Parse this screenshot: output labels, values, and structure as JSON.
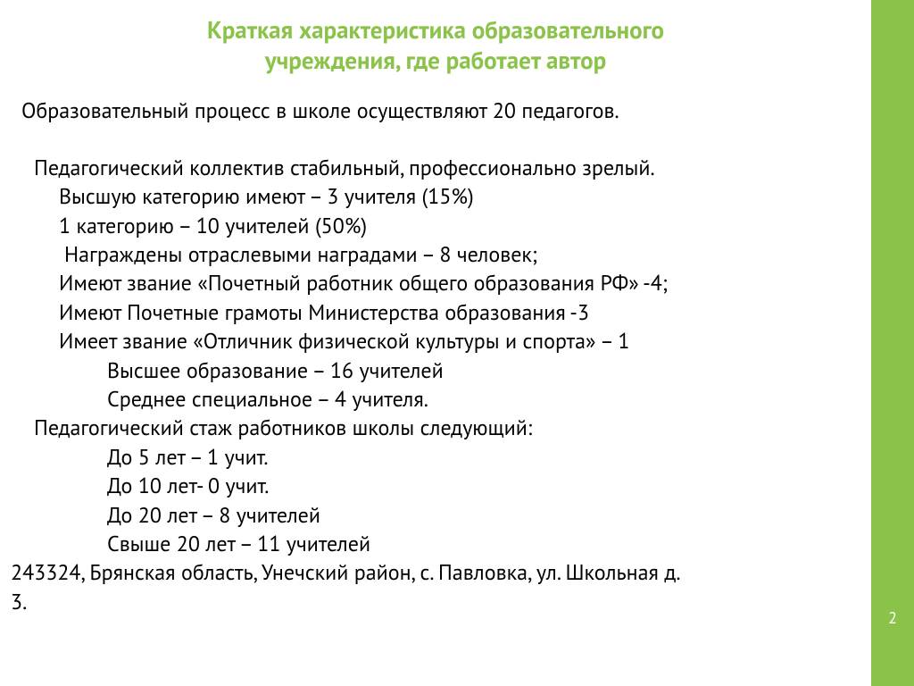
{
  "colors": {
    "accent": "#8bc34a",
    "title": "#8bc34a",
    "text": "#000000",
    "page_number": "#ffffff",
    "background": "#ffffff"
  },
  "page_number": "2",
  "title_line1": "Краткая характеристика образовательного",
  "title_line2": "учреждения, где работает автор",
  "lines": {
    "intro": "Образовательный процесс в школе осуществляют 20 педагогов.",
    "stable": "Педагогический коллектив стабильный, профессионально зрелый.",
    "highest": "Высшую категорию имеют – 3 учителя (15%)",
    "first_cat": "1 категорию – 10 учителей (50%)",
    "awards": "Награждены отраслевыми наградами – 8 человек;",
    "honored_worker": "Имеют звание «Почетный работник общего образования РФ» -4;",
    "honor_certs": "Имеют Почетные грамоты Министерства образования -3",
    "sport_title": "Имеет звание «Отличник физической культуры и спорта» – 1",
    "higher_ed": "Высшее образование – 16 учителей",
    "secondary_ed": "Среднее  специальное – 4 учителя.",
    "experience_header": "Педагогический стаж работников школы следующий:",
    "exp_5": "До 5 лет – 1 учит.",
    "exp_10": "До 10 лет- 0 учит.",
    "exp_20": "До 20 лет – 8 учителей",
    "exp_over20": "Свыше 20 лет – 11 учителей",
    "address1": "243324, Брянская область, Унечский район, с. Павловка, ул. Школьная д.",
    "address2": "3."
  }
}
